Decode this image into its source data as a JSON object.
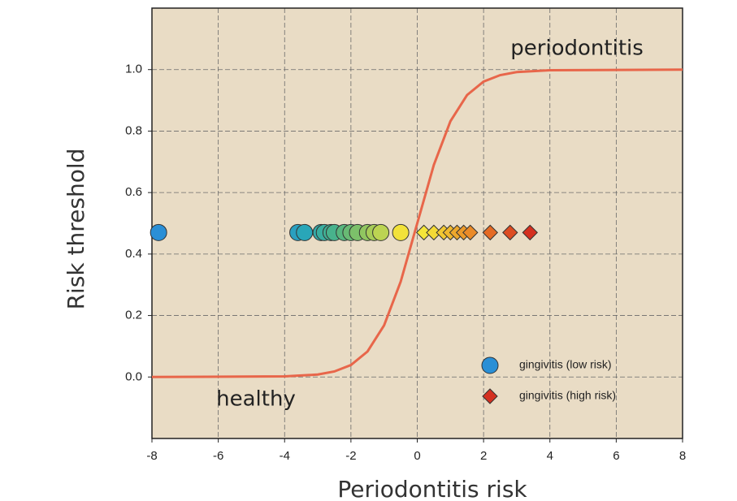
{
  "chart_data": {
    "type": "scatter",
    "x_label": "Periodontitis risk",
    "y_label": "Risk threshold",
    "annotations": [
      "periodontitis",
      "healthy"
    ],
    "xlim": [
      -8,
      8
    ],
    "ylim": [
      -0.2,
      1.2
    ],
    "xticks": [
      -8,
      -6,
      -4,
      -2,
      0,
      2,
      4,
      6,
      8
    ],
    "yticks": [
      {
        "value": 0,
        "label": "0.0"
      },
      0.2,
      0.4,
      0.6,
      0.8,
      {
        "value": 1,
        "label": "1.0"
      }
    ],
    "grid": true,
    "background": "#e9dcc5",
    "legend": "lower right",
    "curve": {
      "color": "#e8664a",
      "x": [
        -8,
        -4,
        -3,
        -2.5,
        -2,
        -1.5,
        -1,
        -0.5,
        0,
        0.5,
        1,
        1.5,
        2,
        2.5,
        3,
        4,
        8
      ],
      "values": [
        0,
        0.002,
        0.008,
        0.018,
        0.039,
        0.083,
        0.168,
        0.31,
        0.5,
        0.69,
        0.832,
        0.917,
        0.961,
        0.982,
        0.992,
        0.998,
        1
      ]
    },
    "series": [
      {
        "name": "gingivitis (low risk)",
        "color": "#2a8fd6",
        "marker": "circle",
        "x": [
          -7.8,
          -3.6,
          -3.4,
          -2.9,
          -2.8,
          -2.6,
          -2.5,
          -2.2,
          -2.0,
          -1.8,
          -1.5,
          -1.3,
          -1.1,
          -0.5
        ],
        "values": [
          0.47,
          0.47,
          0.47,
          0.47,
          0.47,
          0.47,
          0.47,
          0.47,
          0.47,
          0.47,
          0.47,
          0.47,
          0.47,
          0.47
        ],
        "colors": [
          "#2a8fd6",
          "#2aa0c0",
          "#29a6b8",
          "#35aaa8",
          "#3aae9f",
          "#40b094",
          "#48b28c",
          "#58b67e",
          "#68ba74",
          "#7cc06a",
          "#90c660",
          "#a6cc58",
          "#bcd452",
          "#f2e23a"
        ]
      },
      {
        "name": "gingivitis (high risk)",
        "color": "#d43020",
        "marker": "diamond",
        "x": [
          0.2,
          0.5,
          0.8,
          1.0,
          1.2,
          1.4,
          1.6,
          2.2,
          2.8,
          3.4
        ],
        "values": [
          0.47,
          0.47,
          0.47,
          0.47,
          0.47,
          0.47,
          0.47,
          0.47,
          0.47,
          0.47
        ],
        "colors": [
          "#f5e63a",
          "#f4da36",
          "#f2c832",
          "#f0b82e",
          "#eea82c",
          "#ec9a2a",
          "#ea8a28",
          "#e46a24",
          "#dc4c22",
          "#d43020"
        ]
      }
    ]
  }
}
